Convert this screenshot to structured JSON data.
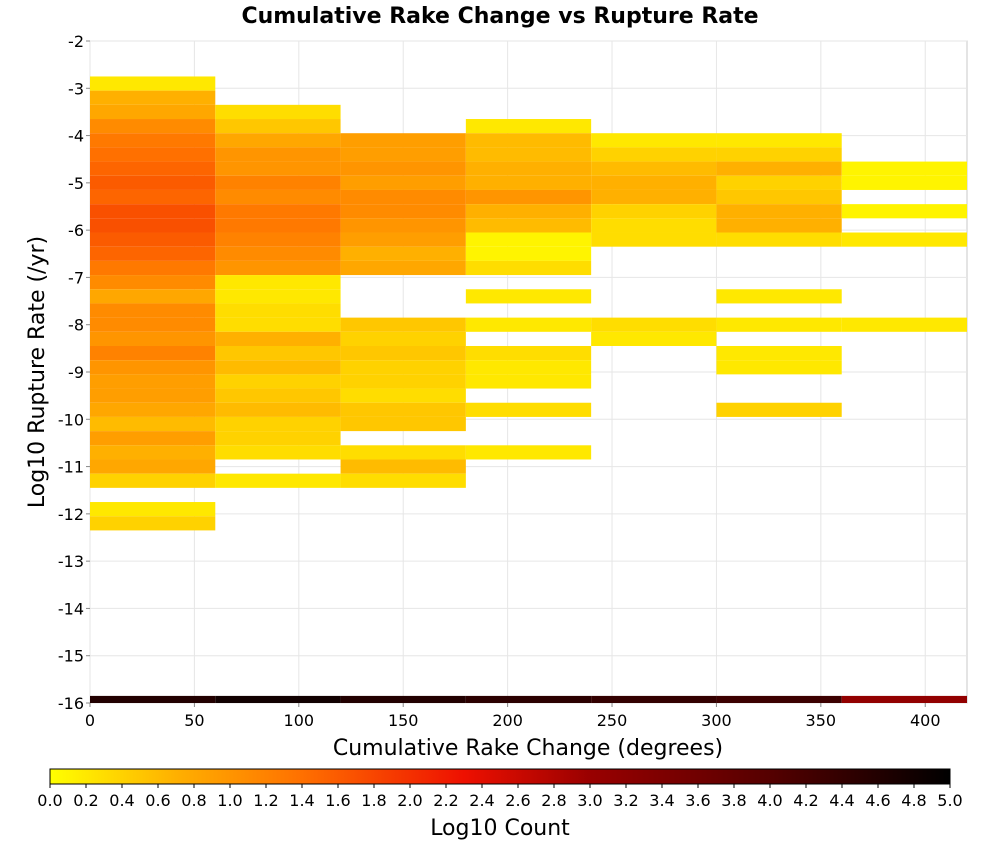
{
  "chart_data": {
    "type": "heatmap",
    "title": "Cumulative Rake Change vs Rupture Rate",
    "xlabel": "Cumulative Rake Change (degrees)",
    "ylabel": "Log10 Rupture Rate (/yr)",
    "xlim": [
      0,
      420
    ],
    "ylim": [
      -16,
      -2
    ],
    "x_ticks": [
      0,
      50,
      100,
      150,
      200,
      250,
      300,
      350,
      400
    ],
    "y_ticks": [
      -2,
      -3,
      -4,
      -5,
      -6,
      -7,
      -8,
      -9,
      -10,
      -11,
      -12,
      -13,
      -14,
      -15,
      -16
    ],
    "grid": true,
    "x_bin_width": 60,
    "y_bin_width": 0.3,
    "colorbar": {
      "label": "Log10 Count",
      "range": [
        0,
        5
      ],
      "ticks": [
        "0.0",
        "0.2",
        "0.4",
        "0.6",
        "0.8",
        "1.0",
        "1.2",
        "1.4",
        "1.6",
        "1.8",
        "2.0",
        "2.2",
        "2.4",
        "2.6",
        "2.8",
        "3.0",
        "3.2",
        "3.4",
        "3.6",
        "3.8",
        "4.0",
        "4.2",
        "4.4",
        "4.6",
        "4.8",
        "5.0"
      ],
      "stops": [
        {
          "v": 0.0,
          "color": "#ffff00"
        },
        {
          "v": 0.7,
          "color": "#ffb000"
        },
        {
          "v": 1.4,
          "color": "#ff7000"
        },
        {
          "v": 2.3,
          "color": "#ee1000"
        },
        {
          "v": 3.0,
          "color": "#990000"
        },
        {
          "v": 4.0,
          "color": "#550000"
        },
        {
          "v": 5.0,
          "color": "#000000"
        }
      ]
    },
    "columns": [
      {
        "x0": 0,
        "cells": [
          {
            "y": -2.9,
            "v": 0.2
          },
          {
            "y": -3.2,
            "v": 0.7
          },
          {
            "y": -3.5,
            "v": 0.8
          },
          {
            "y": -3.8,
            "v": 1.1
          },
          {
            "y": -4.1,
            "v": 1.3
          },
          {
            "y": -4.4,
            "v": 1.4
          },
          {
            "y": -4.7,
            "v": 1.5
          },
          {
            "y": -5.0,
            "v": 1.6
          },
          {
            "y": -5.3,
            "v": 1.5
          },
          {
            "y": -5.6,
            "v": 1.7
          },
          {
            "y": -5.9,
            "v": 1.7
          },
          {
            "y": -6.2,
            "v": 1.6
          },
          {
            "y": -6.5,
            "v": 1.5
          },
          {
            "y": -6.8,
            "v": 1.3
          },
          {
            "y": -7.1,
            "v": 1.1
          },
          {
            "y": -7.4,
            "v": 0.8
          },
          {
            "y": -7.7,
            "v": 1.1
          },
          {
            "y": -8.0,
            "v": 1.1
          },
          {
            "y": -8.3,
            "v": 1.0
          },
          {
            "y": -8.6,
            "v": 1.2
          },
          {
            "y": -8.9,
            "v": 1.0
          },
          {
            "y": -9.2,
            "v": 0.9
          },
          {
            "y": -9.5,
            "v": 0.9
          },
          {
            "y": -9.8,
            "v": 0.8
          },
          {
            "y": -10.1,
            "v": 0.6
          },
          {
            "y": -10.4,
            "v": 0.9
          },
          {
            "y": -10.7,
            "v": 0.7
          },
          {
            "y": -11.0,
            "v": 0.8
          },
          {
            "y": -11.3,
            "v": 0.4
          },
          {
            "y": -11.9,
            "v": 0.2
          },
          {
            "y": -12.2,
            "v": 0.4
          },
          {
            "y": -16.0,
            "v": 4.6
          }
        ]
      },
      {
        "x0": 60,
        "cells": [
          {
            "y": -3.5,
            "v": 0.3
          },
          {
            "y": -3.8,
            "v": 0.5
          },
          {
            "y": -4.1,
            "v": 0.8
          },
          {
            "y": -4.4,
            "v": 1.0
          },
          {
            "y": -4.7,
            "v": 1.0
          },
          {
            "y": -5.0,
            "v": 1.2
          },
          {
            "y": -5.3,
            "v": 1.1
          },
          {
            "y": -5.6,
            "v": 1.3
          },
          {
            "y": -5.9,
            "v": 1.3
          },
          {
            "y": -6.2,
            "v": 1.2
          },
          {
            "y": -6.5,
            "v": 1.1
          },
          {
            "y": -6.8,
            "v": 1.0
          },
          {
            "y": -7.1,
            "v": 0.2
          },
          {
            "y": -7.4,
            "v": 0.2
          },
          {
            "y": -7.7,
            "v": 0.3
          },
          {
            "y": -8.0,
            "v": 0.3
          },
          {
            "y": -8.3,
            "v": 0.7
          },
          {
            "y": -8.6,
            "v": 0.5
          },
          {
            "y": -8.9,
            "v": 0.6
          },
          {
            "y": -9.2,
            "v": 0.4
          },
          {
            "y": -9.5,
            "v": 0.5
          },
          {
            "y": -9.8,
            "v": 0.6
          },
          {
            "y": -10.1,
            "v": 0.4
          },
          {
            "y": -10.4,
            "v": 0.4
          },
          {
            "y": -10.7,
            "v": 0.3
          },
          {
            "y": -11.3,
            "v": 0.2
          },
          {
            "y": -16.0,
            "v": 4.8
          }
        ]
      },
      {
        "x0": 120,
        "cells": [
          {
            "y": -4.1,
            "v": 0.9
          },
          {
            "y": -4.4,
            "v": 0.9
          },
          {
            "y": -4.7,
            "v": 1.0
          },
          {
            "y": -5.0,
            "v": 0.9
          },
          {
            "y": -5.3,
            "v": 1.1
          },
          {
            "y": -5.6,
            "v": 1.1
          },
          {
            "y": -5.9,
            "v": 1.0
          },
          {
            "y": -6.2,
            "v": 0.9
          },
          {
            "y": -6.5,
            "v": 0.7
          },
          {
            "y": -6.8,
            "v": 0.8
          },
          {
            "y": -8.0,
            "v": 0.5
          },
          {
            "y": -8.3,
            "v": 0.4
          },
          {
            "y": -8.6,
            "v": 0.5
          },
          {
            "y": -8.9,
            "v": 0.4
          },
          {
            "y": -9.2,
            "v": 0.4
          },
          {
            "y": -9.5,
            "v": 0.3
          },
          {
            "y": -9.8,
            "v": 0.5
          },
          {
            "y": -10.1,
            "v": 0.5
          },
          {
            "y": -10.7,
            "v": 0.3
          },
          {
            "y": -11.0,
            "v": 0.6
          },
          {
            "y": -11.3,
            "v": 0.3
          },
          {
            "y": -16.0,
            "v": 4.6
          }
        ]
      },
      {
        "x0": 180,
        "cells": [
          {
            "y": -3.8,
            "v": 0.2
          },
          {
            "y": -4.1,
            "v": 0.6
          },
          {
            "y": -4.4,
            "v": 0.6
          },
          {
            "y": -4.7,
            "v": 0.7
          },
          {
            "y": -5.0,
            "v": 0.7
          },
          {
            "y": -5.3,
            "v": 1.0
          },
          {
            "y": -5.6,
            "v": 0.7
          },
          {
            "y": -5.9,
            "v": 0.6
          },
          {
            "y": -6.2,
            "v": 0.1
          },
          {
            "y": -6.5,
            "v": 0.1
          },
          {
            "y": -6.8,
            "v": 0.3
          },
          {
            "y": -7.4,
            "v": 0.2
          },
          {
            "y": -8.0,
            "v": 0.2
          },
          {
            "y": -8.6,
            "v": 0.3
          },
          {
            "y": -8.9,
            "v": 0.2
          },
          {
            "y": -9.2,
            "v": 0.2
          },
          {
            "y": -9.8,
            "v": 0.3
          },
          {
            "y": -10.7,
            "v": 0.2
          },
          {
            "y": -16.0,
            "v": 4.5
          }
        ]
      },
      {
        "x0": 240,
        "cells": [
          {
            "y": -4.1,
            "v": 0.2
          },
          {
            "y": -4.4,
            "v": 0.4
          },
          {
            "y": -4.7,
            "v": 0.6
          },
          {
            "y": -5.0,
            "v": 0.7
          },
          {
            "y": -5.3,
            "v": 0.7
          },
          {
            "y": -5.6,
            "v": 0.4
          },
          {
            "y": -5.9,
            "v": 0.3
          },
          {
            "y": -6.2,
            "v": 0.3
          },
          {
            "y": -8.0,
            "v": 0.3
          },
          {
            "y": -8.3,
            "v": 0.2
          },
          {
            "y": -16.0,
            "v": 4.4
          }
        ]
      },
      {
        "x0": 300,
        "cells": [
          {
            "y": -4.1,
            "v": 0.2
          },
          {
            "y": -4.4,
            "v": 0.4
          },
          {
            "y": -4.7,
            "v": 0.7
          },
          {
            "y": -5.0,
            "v": 0.4
          },
          {
            "y": -5.3,
            "v": 0.5
          },
          {
            "y": -5.6,
            "v": 0.7
          },
          {
            "y": -5.9,
            "v": 0.7
          },
          {
            "y": -6.2,
            "v": 0.3
          },
          {
            "y": -7.4,
            "v": 0.2
          },
          {
            "y": -8.0,
            "v": 0.2
          },
          {
            "y": -8.6,
            "v": 0.2
          },
          {
            "y": -8.9,
            "v": 0.2
          },
          {
            "y": -9.8,
            "v": 0.4
          },
          {
            "y": -16.0,
            "v": 4.3
          }
        ]
      },
      {
        "x0": 360,
        "cells": [
          {
            "y": -4.7,
            "v": 0.1
          },
          {
            "y": -5.0,
            "v": 0.1
          },
          {
            "y": -5.6,
            "v": 0.1
          },
          {
            "y": -6.2,
            "v": 0.2
          },
          {
            "y": -8.0,
            "v": 0.2
          },
          {
            "y": -16.0,
            "v": 3.1
          }
        ]
      }
    ]
  }
}
